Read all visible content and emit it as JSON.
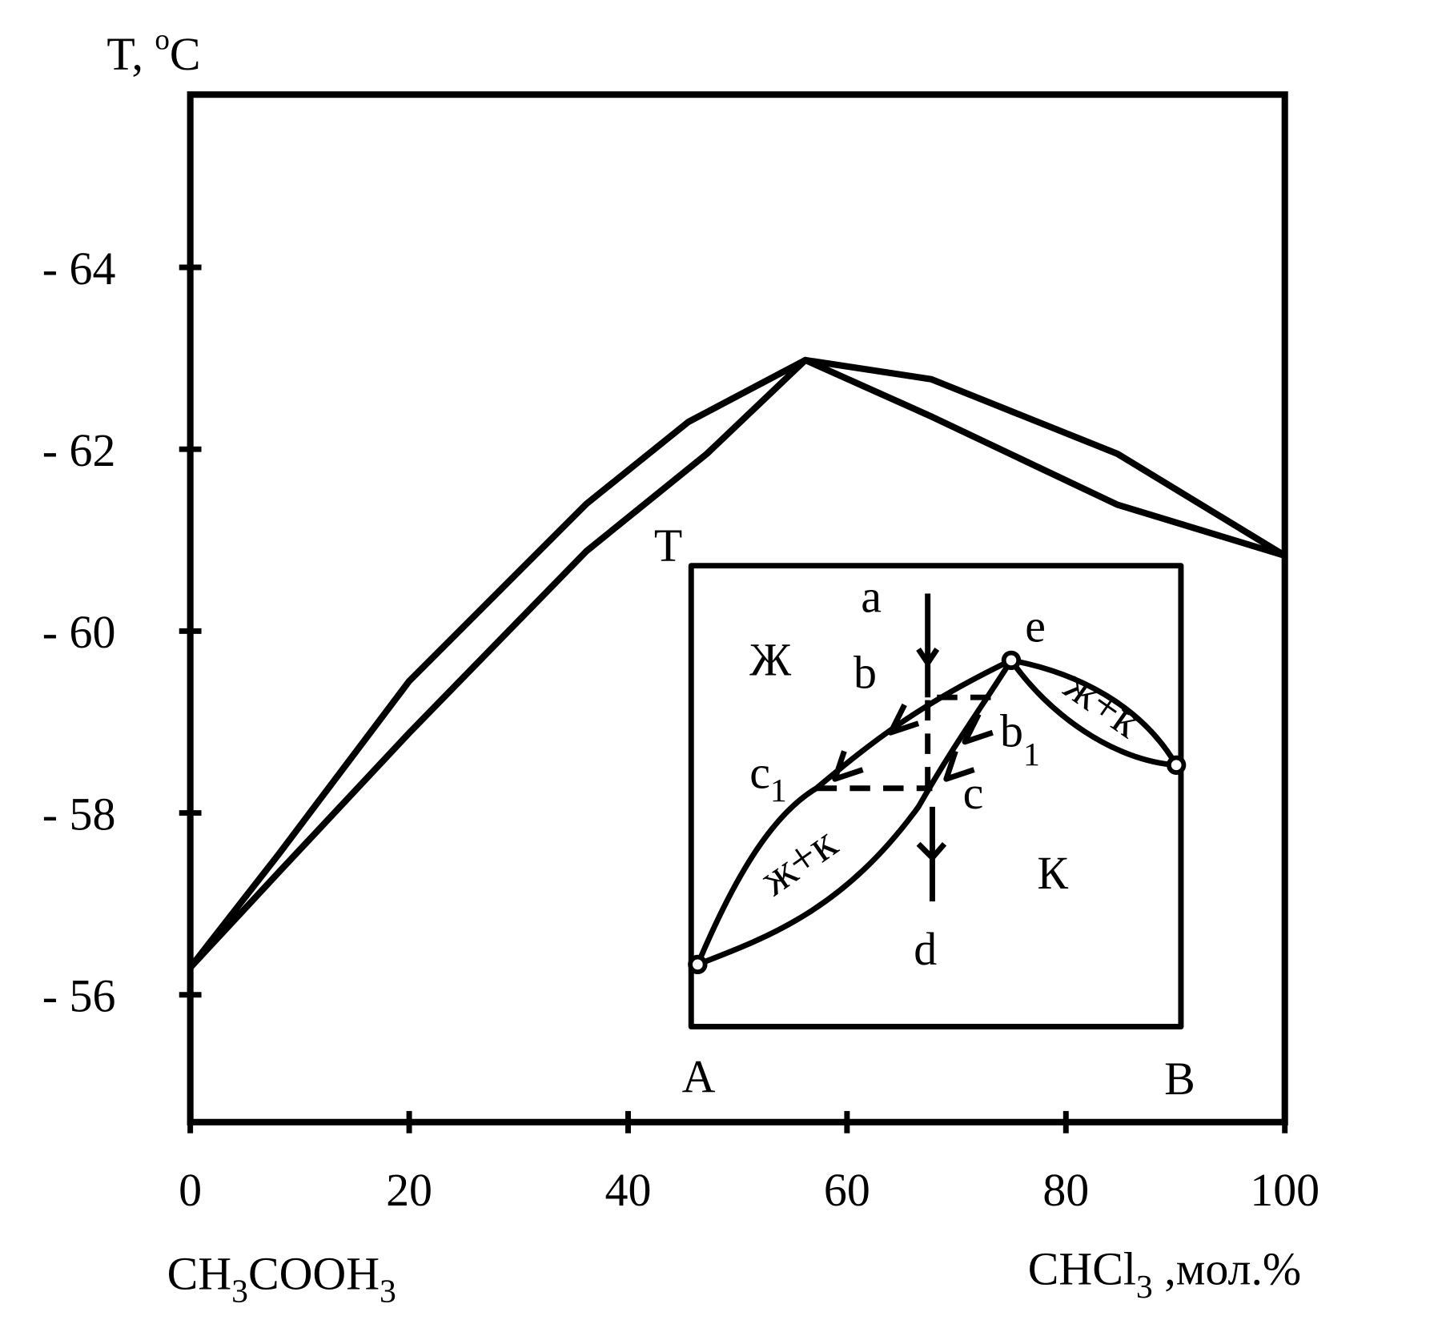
{
  "chart_data": {
    "type": "line",
    "y_label": {
      "text": "T, ",
      "sup": "o",
      "unit": "C"
    },
    "x_label_left": [
      "CH",
      "3",
      "COOH",
      "3"
    ],
    "x_label_right": [
      "CHCl",
      "3",
      " ,мол.%"
    ],
    "xlim": [
      0,
      100
    ],
    "xticks": [
      0,
      20,
      40,
      60,
      80,
      100
    ],
    "ylim": [
      -54.6,
      -65.9
    ],
    "yticks": [
      {
        "value": -56,
        "label": "- 56"
      },
      {
        "value": -58,
        "label": "- 58"
      },
      {
        "value": -60,
        "label": "- 60"
      },
      {
        "value": -62,
        "label": "- 62"
      },
      {
        "value": -64,
        "label": "- 64"
      }
    ],
    "series": [
      {
        "color": "#000000",
        "x": [
          0,
          8.1,
          20,
          36.2,
          45.5,
          56.2,
          67.7,
          84.7,
          100
        ],
        "values": [
          -56.3,
          -57.55,
          -59.45,
          -61.4,
          -62.3,
          -62.98,
          -62.77,
          -61.95,
          -60.83
        ]
      },
      {
        "color": "#000000",
        "x": [
          0,
          8.1,
          20,
          36.2,
          47.2,
          56.2,
          67.7,
          84.7,
          100
        ],
        "values": [
          -56.3,
          -57.35,
          -58.88,
          -60.88,
          -61.95,
          -62.98,
          -62.36,
          -61.39,
          -60.83
        ]
      }
    ],
    "inset": {
      "t": "T",
      "a": "a",
      "b": "b",
      "c1": {
        "text": "c",
        "sub": "1"
      },
      "liquid": "Ж",
      "e": "e",
      "b1": {
        "text": "b",
        "sub": "1"
      },
      "c": "c",
      "solid": "К",
      "d": "d",
      "A": "A",
      "B": "B",
      "lens_left": "ж+к",
      "lens_right": "ж+к"
    }
  }
}
